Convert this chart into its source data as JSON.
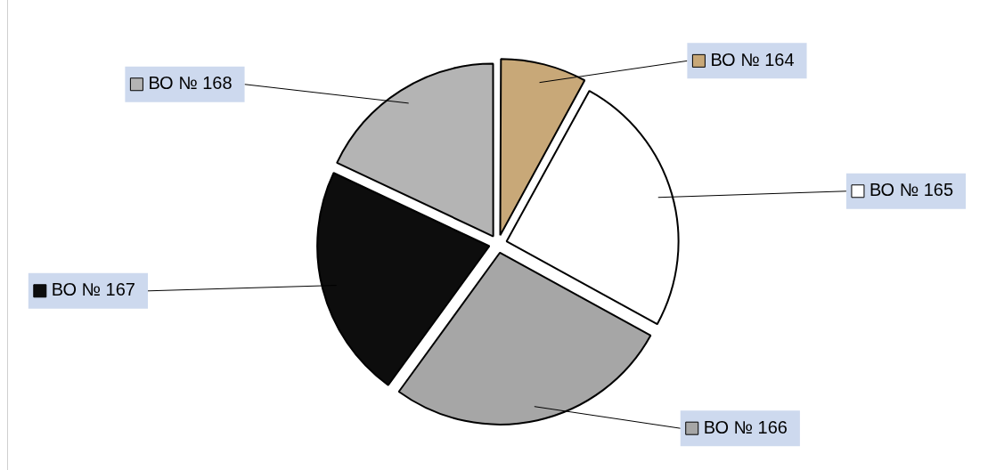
{
  "chart_data": {
    "type": "pie",
    "categories": [
      "ВО № 164",
      "ВО № 165",
      "ВО № 166",
      "ВО № 167",
      "ВО № 168"
    ],
    "values": [
      8,
      25,
      27,
      22,
      18
    ],
    "colors": [
      "#c8a878",
      "#ffffff",
      "#a6a6a6",
      "#0d0d0d",
      "#b4b4b4"
    ],
    "legend": "right"
  }
}
